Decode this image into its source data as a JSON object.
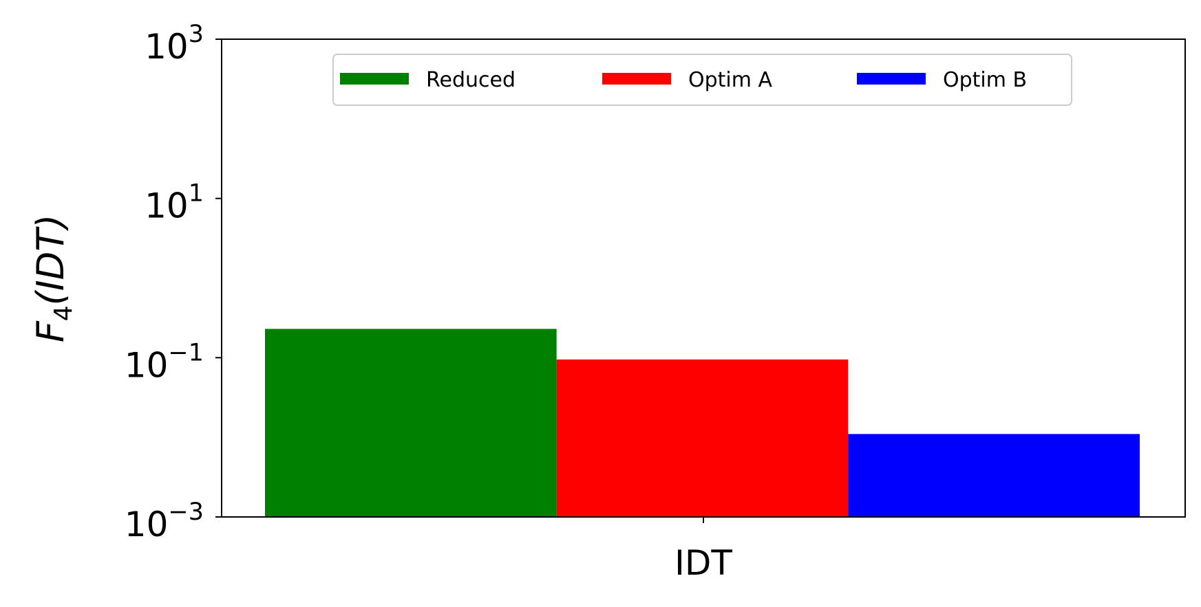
{
  "chart_data": {
    "type": "bar",
    "yscale": "log",
    "ylim": [
      0.001,
      1000
    ],
    "yticks": [
      {
        "value": 0.001,
        "base": "10",
        "exp": "−3"
      },
      {
        "value": 0.1,
        "base": "10",
        "exp": "−1"
      },
      {
        "value": 10,
        "base": "10",
        "exp": "1"
      },
      {
        "value": 1000,
        "base": "10",
        "exp": "3"
      }
    ],
    "categories": [
      "IDT"
    ],
    "series": [
      {
        "name": "Reduced",
        "color": "#008000",
        "values": [
          0.23
        ]
      },
      {
        "name": "Optim A",
        "color": "#ff0000",
        "values": [
          0.095
        ]
      },
      {
        "name": "Optim B",
        "color": "#0000ff",
        "values": [
          0.011
        ]
      }
    ],
    "ylabel": {
      "main": "F",
      "sub": "4",
      "arg": "(IDT)"
    },
    "legend_position": "upper center",
    "grid": false
  }
}
